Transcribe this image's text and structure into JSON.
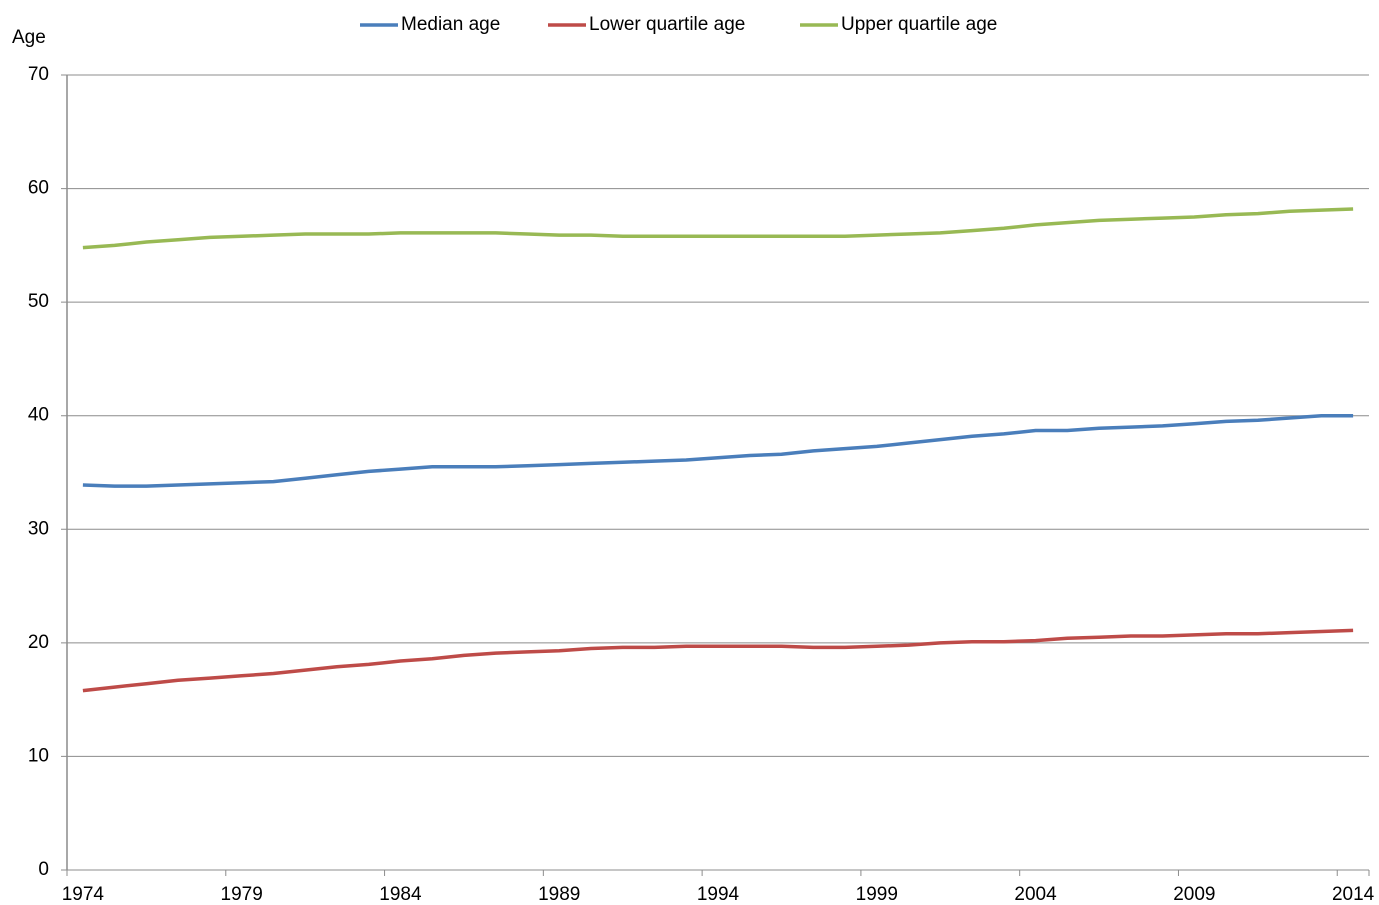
{
  "chart_data": {
    "type": "line",
    "y_label": "Age",
    "categories": [
      "1974",
      null,
      null,
      null,
      null,
      "1979",
      null,
      null,
      null,
      null,
      "1984",
      null,
      null,
      null,
      null,
      "1989",
      null,
      null,
      null,
      null,
      "1994",
      null,
      null,
      null,
      null,
      "1999",
      null,
      null,
      null,
      null,
      "2004",
      null,
      null,
      null,
      null,
      "2009",
      null,
      null,
      null,
      null,
      "2014"
    ],
    "series": [
      {
        "name": "Median age",
        "color": "#4a7ebb",
        "values": [
          33.9,
          33.8,
          33.8,
          33.9,
          34.0,
          34.1,
          34.2,
          34.5,
          34.8,
          35.1,
          35.3,
          35.5,
          35.5,
          35.5,
          35.6,
          35.7,
          35.8,
          35.9,
          36.0,
          36.1,
          36.3,
          36.5,
          36.6,
          36.9,
          37.1,
          37.3,
          37.6,
          37.9,
          38.2,
          38.4,
          38.7,
          38.7,
          38.9,
          39.0,
          39.1,
          39.3,
          39.5,
          39.6,
          39.8,
          40.0,
          40.0
        ]
      },
      {
        "name": "Lower quartile age",
        "color": "#be4b48",
        "values": [
          15.8,
          16.1,
          16.4,
          16.7,
          16.9,
          17.1,
          17.3,
          17.6,
          17.9,
          18.1,
          18.4,
          18.6,
          18.9,
          19.1,
          19.2,
          19.3,
          19.5,
          19.6,
          19.6,
          19.7,
          19.7,
          19.7,
          19.7,
          19.6,
          19.6,
          19.7,
          19.8,
          20.0,
          20.1,
          20.1,
          20.2,
          20.4,
          20.5,
          20.6,
          20.6,
          20.7,
          20.8,
          20.8,
          20.9,
          21.0,
          21.1
        ]
      },
      {
        "name": "Upper quartile age",
        "color": "#98b954",
        "values": [
          54.8,
          55.0,
          55.3,
          55.5,
          55.7,
          55.8,
          55.9,
          56.0,
          56.0,
          56.0,
          56.1,
          56.1,
          56.1,
          56.1,
          56.0,
          55.9,
          55.9,
          55.8,
          55.8,
          55.8,
          55.8,
          55.8,
          55.8,
          55.8,
          55.8,
          55.9,
          56.0,
          56.1,
          56.3,
          56.5,
          56.8,
          57.0,
          57.2,
          57.3,
          57.4,
          57.5,
          57.7,
          57.8,
          58.0,
          58.1,
          58.2
        ]
      }
    ],
    "ylim": [
      0,
      70
    ],
    "yticks": [
      0,
      10,
      20,
      30,
      40,
      50,
      60,
      70
    ],
    "grid": true,
    "legend": "top"
  }
}
